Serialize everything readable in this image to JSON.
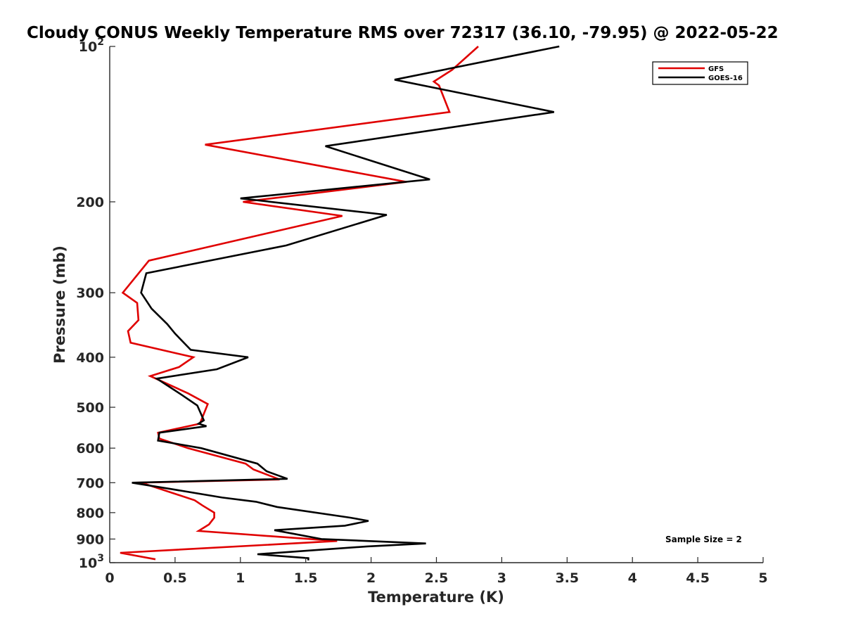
{
  "chart_data": {
    "type": "line",
    "title": "Cloudy CONUS Weekly Temperature RMS over 72317 (36.10, -79.95) @ 2022-05-22",
    "xlabel": "Temperature (K)",
    "ylabel": "Pressure (mb)",
    "xlim": [
      0,
      5
    ],
    "ylim": [
      100,
      1000
    ],
    "yscale": "log",
    "y_reversed": true,
    "grid": false,
    "legend_position": "top-right",
    "x_ticks": [
      "0",
      "0.5",
      "1",
      "1.5",
      "2",
      "2.5",
      "3",
      "3.5",
      "4",
      "4.5",
      "5"
    ],
    "y_ticks": [
      {
        "value": 100,
        "label": "10",
        "sup": "2"
      },
      {
        "value": 200,
        "label": "200",
        "sup": ""
      },
      {
        "value": 300,
        "label": "300",
        "sup": ""
      },
      {
        "value": 400,
        "label": "400",
        "sup": ""
      },
      {
        "value": 500,
        "label": "500",
        "sup": ""
      },
      {
        "value": 600,
        "label": "600",
        "sup": ""
      },
      {
        "value": 700,
        "label": "700",
        "sup": ""
      },
      {
        "value": 800,
        "label": "800",
        "sup": ""
      },
      {
        "value": 900,
        "label": "900",
        "sup": ""
      },
      {
        "value": 1000,
        "label": "10",
        "sup": "3"
      }
    ],
    "annotation": "Sample Size = 2",
    "series": [
      {
        "name": "GFS",
        "color": "#e00000",
        "points": [
          [
            2.82,
            100
          ],
          [
            2.62,
            111
          ],
          [
            2.48,
            117
          ],
          [
            2.52,
            119
          ],
          [
            2.6,
            134
          ],
          [
            0.73,
            155
          ],
          [
            2.27,
            183
          ],
          [
            1.02,
            200
          ],
          [
            1.78,
            213
          ],
          [
            0.3,
            260
          ],
          [
            0.1,
            300
          ],
          [
            0.21,
            314
          ],
          [
            0.22,
            339
          ],
          [
            0.14,
            356
          ],
          [
            0.16,
            375
          ],
          [
            0.64,
            400
          ],
          [
            0.53,
            418
          ],
          [
            0.31,
            435
          ],
          [
            0.6,
            470
          ],
          [
            0.75,
            493
          ],
          [
            0.69,
            538
          ],
          [
            0.37,
            560
          ],
          [
            0.38,
            575
          ],
          [
            0.6,
            600
          ],
          [
            1.04,
            643
          ],
          [
            1.1,
            660
          ],
          [
            1.3,
            690
          ],
          [
            0.2,
            700
          ],
          [
            0.28,
            705
          ],
          [
            0.65,
            757
          ],
          [
            0.71,
            775
          ],
          [
            0.8,
            800
          ],
          [
            0.8,
            818
          ],
          [
            0.76,
            843
          ],
          [
            0.68,
            868
          ],
          [
            1.74,
            908
          ],
          [
            0.08,
            957
          ],
          [
            0.35,
            985
          ]
        ]
      },
      {
        "name": "GOES-16",
        "color": "#000000",
        "points": [
          [
            3.44,
            100
          ],
          [
            2.18,
            116
          ],
          [
            3.4,
            134
          ],
          [
            1.65,
            156
          ],
          [
            2.45,
            181
          ],
          [
            1.0,
            197
          ],
          [
            2.12,
            212
          ],
          [
            1.35,
            243
          ],
          [
            0.28,
            275
          ],
          [
            0.24,
            300
          ],
          [
            0.32,
            322
          ],
          [
            0.44,
            345
          ],
          [
            0.5,
            360
          ],
          [
            0.62,
            387
          ],
          [
            1.06,
            400
          ],
          [
            0.82,
            422
          ],
          [
            0.36,
            440
          ],
          [
            0.55,
            473
          ],
          [
            0.67,
            496
          ],
          [
            0.72,
            530
          ],
          [
            0.68,
            538
          ],
          [
            0.74,
            544
          ],
          [
            0.38,
            560
          ],
          [
            0.37,
            580
          ],
          [
            0.7,
            600
          ],
          [
            1.13,
            643
          ],
          [
            1.2,
            665
          ],
          [
            1.36,
            688
          ],
          [
            0.17,
            700
          ],
          [
            0.47,
            720
          ],
          [
            0.86,
            748
          ],
          [
            1.12,
            762
          ],
          [
            1.28,
            780
          ],
          [
            1.84,
            818
          ],
          [
            1.98,
            830
          ],
          [
            1.8,
            848
          ],
          [
            1.26,
            865
          ],
          [
            1.62,
            900
          ],
          [
            2.42,
            918
          ],
          [
            1.97,
            930
          ],
          [
            1.13,
            963
          ],
          [
            1.52,
            980
          ],
          [
            1.52,
            990
          ]
        ]
      }
    ]
  }
}
